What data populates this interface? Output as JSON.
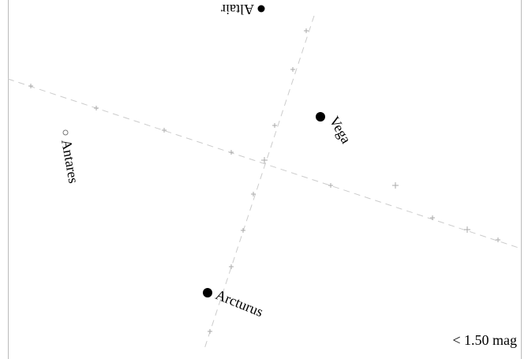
{
  "stars": [
    {
      "label": "Altair"
    },
    {
      "label": "Vega"
    },
    {
      "label": "Antares"
    },
    {
      "label": "Arcturus"
    }
  ],
  "legend": "< 1.50 mag"
}
